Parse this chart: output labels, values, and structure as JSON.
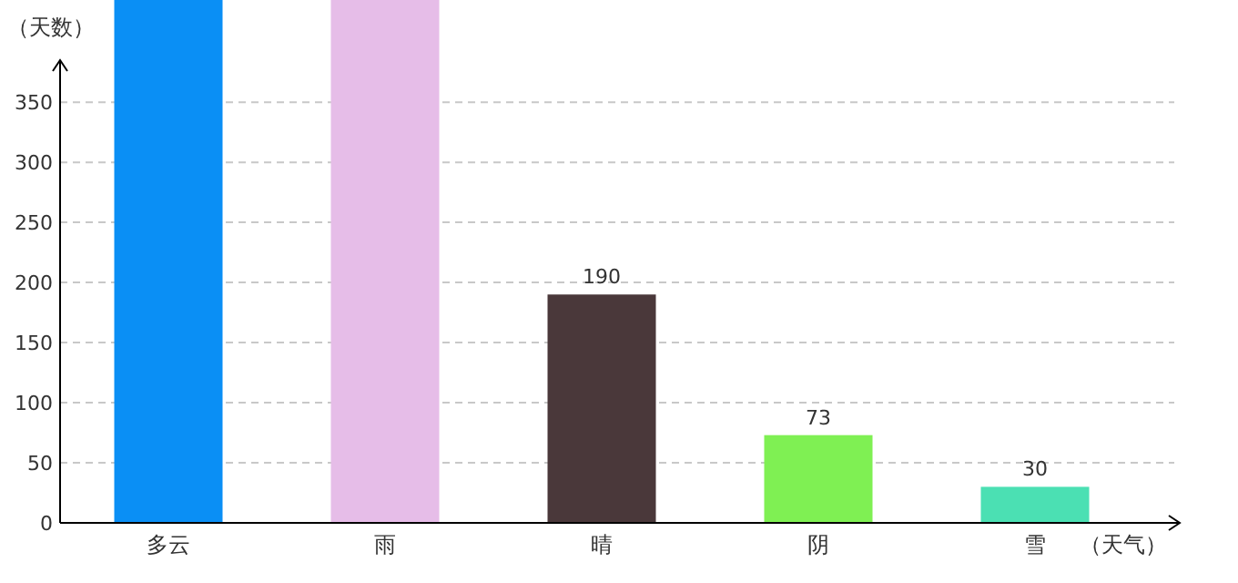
{
  "chart_data": {
    "type": "bar",
    "ylabel": "（天数）",
    "xlabel": "（天气）",
    "categories": [
      "多云",
      "雨",
      "晴",
      "阴",
      "雪"
    ],
    "values": [
      435,
      435,
      190,
      73,
      30
    ],
    "colors": [
      "#0a8ff5",
      "#e6bde8",
      "#4a383a",
      "#7ff053",
      "#4be0b3"
    ],
    "value_labels": [
      null,
      null,
      "190",
      "73",
      "30"
    ],
    "ylim": [
      0,
      435
    ],
    "yticks": [
      0,
      50,
      100,
      150,
      200,
      250,
      300,
      350
    ],
    "grid": "y"
  }
}
